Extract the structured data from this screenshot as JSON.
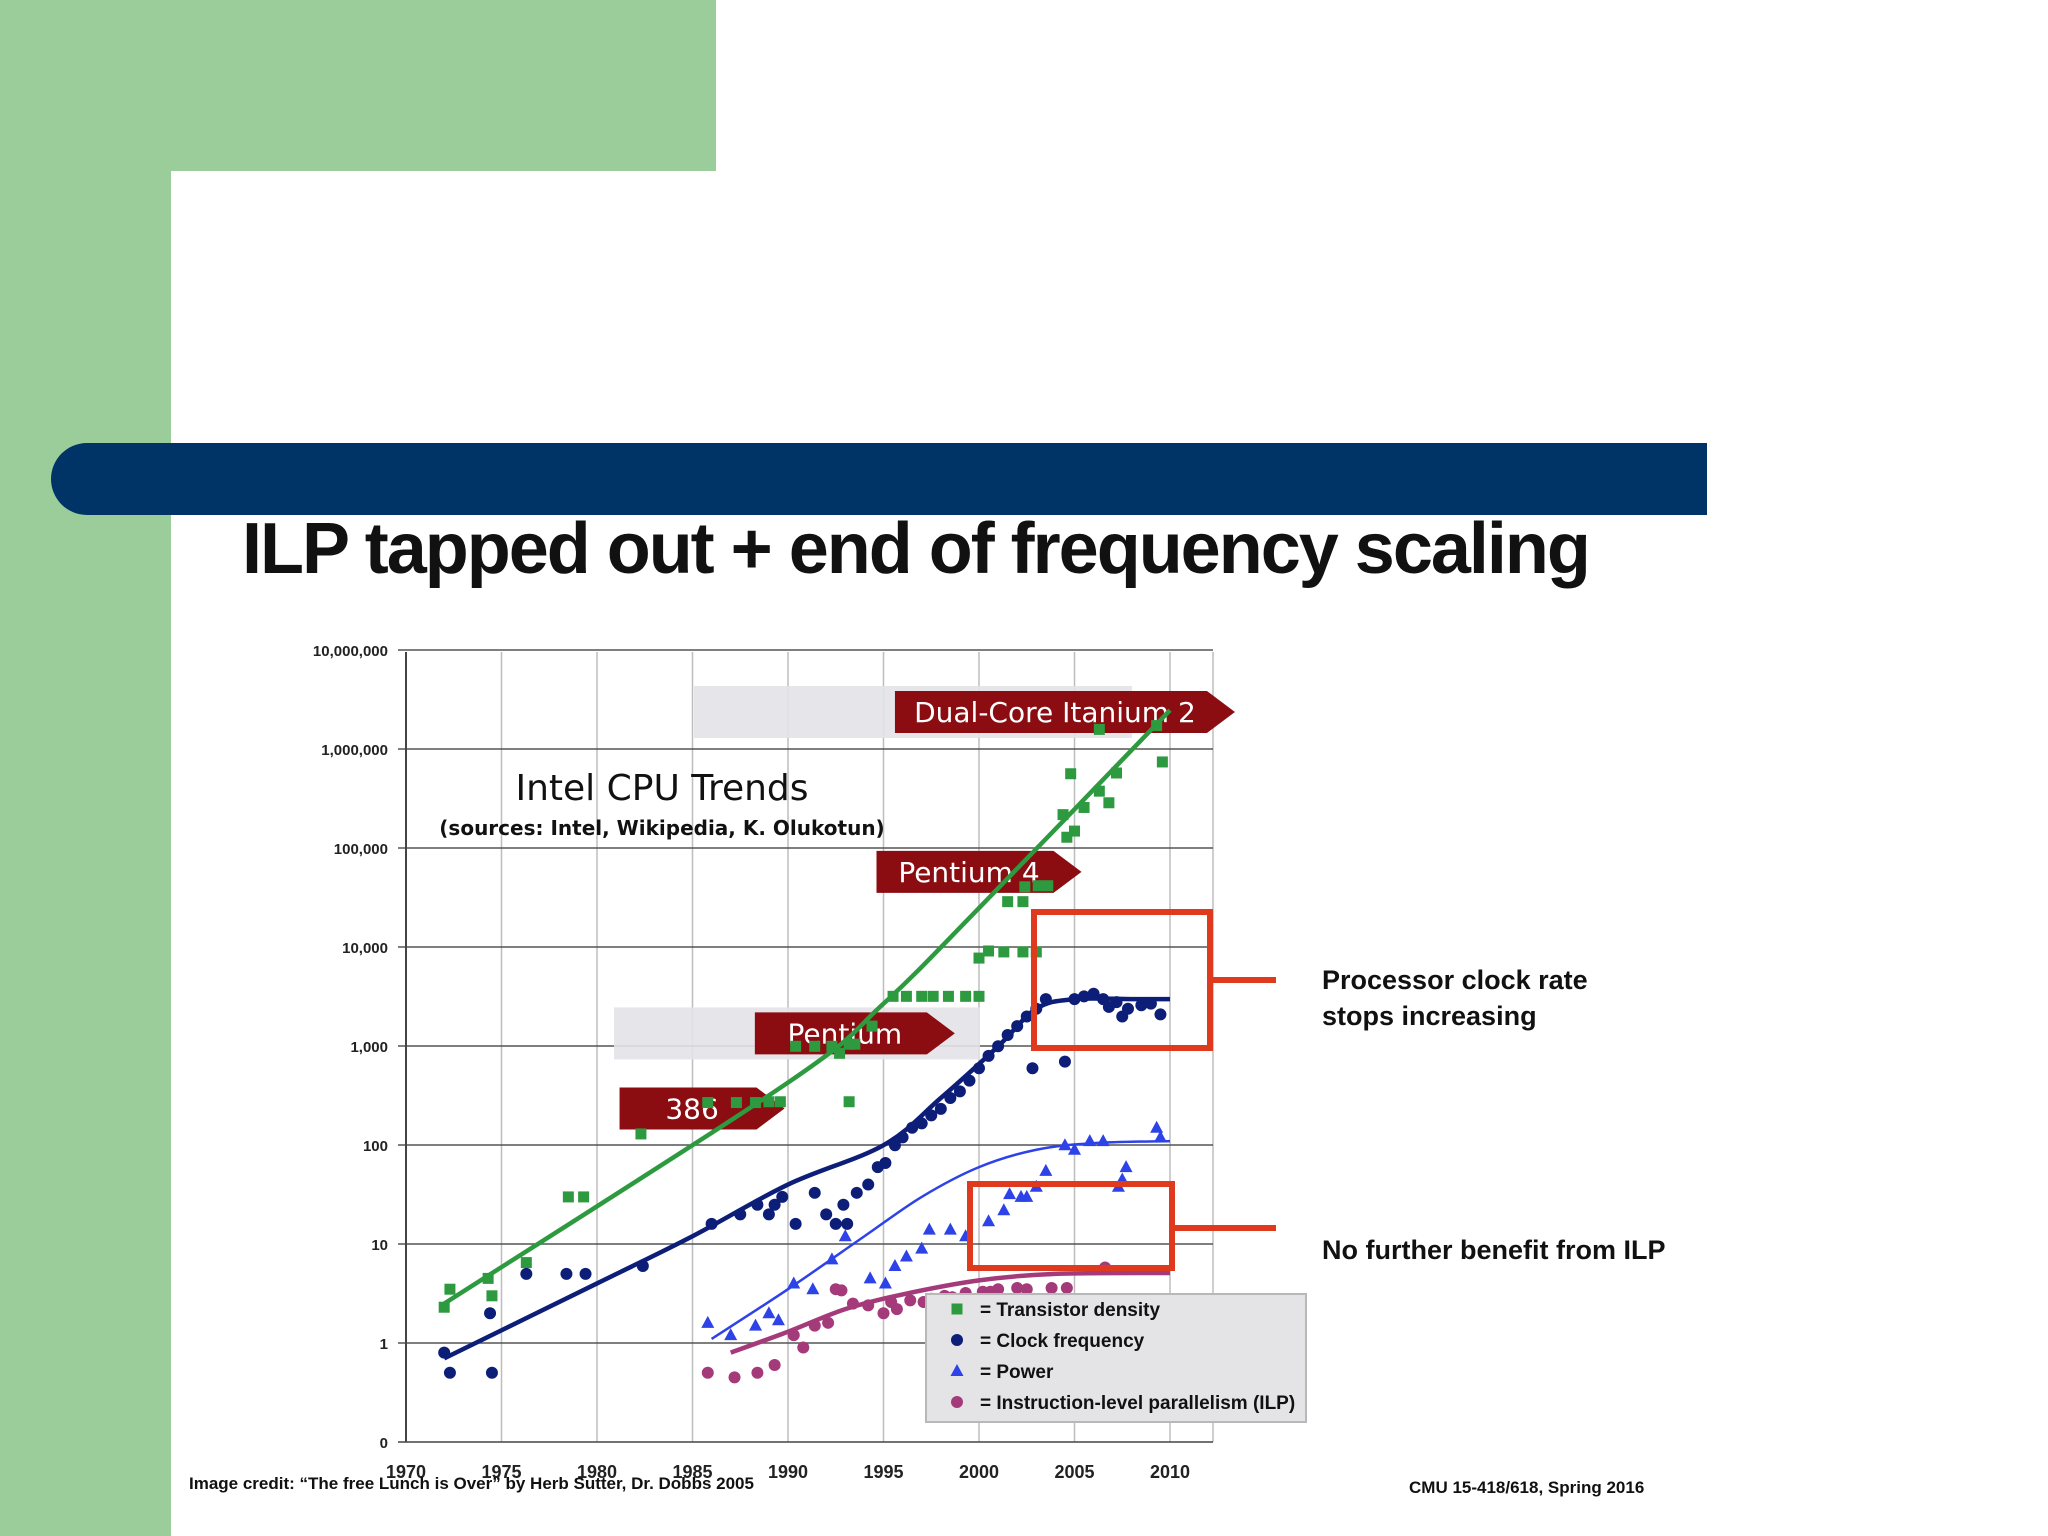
{
  "slide": {
    "title": "ILP tapped out + end of frequency scaling",
    "callout_clock": "Processor clock rate stops increasing",
    "callout_ilp": "No further benefit from ILP",
    "credit": "Image credit: “The free Lunch is Over” by Herb Sutter, Dr. Dobbs 2005",
    "course": "CMU 15-418/618, Spring 2016",
    "colors": {
      "background_green": "#9acd9a",
      "title_bar": "#003366",
      "callout_box": "#e03a1e",
      "arrow_label": "#8b0d12"
    }
  },
  "chart_data": {
    "type": "scatter",
    "title": "Intel CPU Trends",
    "subtitle": "(sources: Intel, Wikipedia, K. Olukotun)",
    "xlabel": "",
    "ylabel": "",
    "x_ticks": [
      "1970",
      "1975",
      "1980",
      "1985",
      "1990",
      "1995",
      "2000",
      "2005",
      "2010"
    ],
    "y_ticks": [
      "0",
      "1",
      "10",
      "100",
      "1,000",
      "10,000",
      "100,000",
      "1,000,000",
      "10,000,000"
    ],
    "xlim": [
      1970,
      2012
    ],
    "y_scale": "log",
    "grid": true,
    "legend_position": "bottom-right",
    "annotations": [
      {
        "label": "386",
        "year": 1985.5,
        "y": 235
      },
      {
        "label": "Pentium",
        "year": 1993.5,
        "y": 1350
      },
      {
        "label": "Pentium 4",
        "year": 2000,
        "y": 58000
      },
      {
        "label": "Dual-Core Itanium 2",
        "year": 2004.5,
        "y": 2400000
      }
    ],
    "series": [
      {
        "name": "Transistor density",
        "marker": "square",
        "color": "#2e9a3f",
        "points": [
          [
            1972,
            2.3
          ],
          [
            1972.3,
            3.5
          ],
          [
            1974.3,
            4.5
          ],
          [
            1974.5,
            3
          ],
          [
            1976.3,
            6.5
          ],
          [
            1978.5,
            30
          ],
          [
            1979.3,
            30
          ],
          [
            1982.3,
            130
          ],
          [
            1985.8,
            270
          ],
          [
            1987.3,
            270
          ],
          [
            1988.3,
            270
          ],
          [
            1989,
            275
          ],
          [
            1989.6,
            275
          ],
          [
            1990.4,
            1000
          ],
          [
            1991.4,
            1000
          ],
          [
            1992.3,
            1000
          ],
          [
            1992.7,
            850
          ],
          [
            1993.2,
            1050
          ],
          [
            1993.5,
            1050
          ],
          [
            1993.2,
            275
          ],
          [
            1994.4,
            1600
          ],
          [
            1995.5,
            3200
          ],
          [
            1996.2,
            3200
          ],
          [
            1997,
            3200
          ],
          [
            1997.6,
            3200
          ],
          [
            1998.4,
            3200
          ],
          [
            1999.3,
            3200
          ],
          [
            2000,
            3200
          ],
          [
            2000,
            7800
          ],
          [
            2000.5,
            9200
          ],
          [
            2001.3,
            9000
          ],
          [
            2002.3,
            9000
          ],
          [
            2003,
            9000
          ],
          [
            2001.5,
            29000
          ],
          [
            2002.3,
            29000
          ],
          [
            2002.4,
            41000
          ],
          [
            2003.1,
            42000
          ],
          [
            2003.6,
            42000
          ],
          [
            2004.4,
            220000
          ],
          [
            2004.6,
            130000
          ],
          [
            2004.8,
            570000
          ],
          [
            2005,
            150000
          ],
          [
            2005.5,
            260000
          ],
          [
            2006.3,
            380000
          ],
          [
            2006.8,
            290000
          ],
          [
            2007.2,
            580000
          ],
          [
            2006.3,
            1600000
          ],
          [
            2009.3,
            1750000
          ],
          [
            2009.6,
            750000
          ]
        ]
      },
      {
        "name": "Clock frequency",
        "marker": "circle",
        "color": "#0d1e78",
        "points": [
          [
            1972,
            0.8
          ],
          [
            1972.3,
            0.5
          ],
          [
            1974.4,
            2
          ],
          [
            1974.5,
            0.5
          ],
          [
            1976.3,
            5
          ],
          [
            1978.4,
            5
          ],
          [
            1979.4,
            5
          ],
          [
            1982.4,
            6
          ],
          [
            1986,
            16
          ],
          [
            1987.5,
            20
          ],
          [
            1988.4,
            25
          ],
          [
            1989,
            20
          ],
          [
            1989.3,
            25
          ],
          [
            1989.7,
            30
          ],
          [
            1990.4,
            16
          ],
          [
            1991.4,
            33
          ],
          [
            1992,
            20
          ],
          [
            1992.5,
            16
          ],
          [
            1992.9,
            25
          ],
          [
            1993.1,
            16
          ],
          [
            1993.6,
            33
          ],
          [
            1994.2,
            40
          ],
          [
            1994.7,
            60
          ],
          [
            1995.1,
            66
          ],
          [
            1995.6,
            100
          ],
          [
            1996,
            120
          ],
          [
            1996.5,
            150
          ],
          [
            1997,
            166
          ],
          [
            1997.5,
            200
          ],
          [
            1998,
            233
          ],
          [
            1998.5,
            300
          ],
          [
            1999,
            350
          ],
          [
            1999.5,
            450
          ],
          [
            2000,
            600
          ],
          [
            2000.5,
            800
          ],
          [
            2001,
            1000
          ],
          [
            2001.5,
            1300
          ],
          [
            2002,
            1600
          ],
          [
            2002.5,
            2000
          ],
          [
            2003,
            2400
          ],
          [
            2003.5,
            3000
          ],
          [
            2002.8,
            600
          ],
          [
            2004.5,
            700
          ],
          [
            2005,
            3000
          ],
          [
            2005.5,
            3200
          ],
          [
            2006,
            3400
          ],
          [
            2006.5,
            3000
          ],
          [
            2006.8,
            2500
          ],
          [
            2007.2,
            2800
          ],
          [
            2007.5,
            2000
          ],
          [
            2007.8,
            2400
          ],
          [
            2008.5,
            2600
          ],
          [
            2009,
            2700
          ],
          [
            2009.5,
            2100
          ]
        ]
      },
      {
        "name": "Power",
        "marker": "triangle",
        "color": "#2d43e8",
        "points": [
          [
            1985.8,
            1.6
          ],
          [
            1987,
            1.2
          ],
          [
            1988.3,
            1.5
          ],
          [
            1989,
            2
          ],
          [
            1989.5,
            1.7
          ],
          [
            1990.3,
            4
          ],
          [
            1991.3,
            3.5
          ],
          [
            1992.3,
            7
          ],
          [
            1993,
            12
          ],
          [
            1994.3,
            4.5
          ],
          [
            1995.1,
            4
          ],
          [
            1995.6,
            6
          ],
          [
            1996.2,
            7.5
          ],
          [
            1997,
            9
          ],
          [
            1997.4,
            14
          ],
          [
            1998.5,
            14
          ],
          [
            1999.3,
            12
          ],
          [
            2000.5,
            17
          ],
          [
            2001.3,
            22
          ],
          [
            2001.6,
            32
          ],
          [
            2002.2,
            30
          ],
          [
            2002.5,
            30
          ],
          [
            2003,
            38
          ],
          [
            2003.5,
            55
          ],
          [
            2004.5,
            100
          ],
          [
            2005,
            90
          ],
          [
            2005.8,
            110
          ],
          [
            2006.5,
            110
          ],
          [
            2007.3,
            38
          ],
          [
            2007.5,
            45
          ],
          [
            2007.7,
            60
          ],
          [
            2009.3,
            150
          ],
          [
            2009.5,
            120
          ]
        ]
      },
      {
        "name": "Instruction-level parallelism (ILP)",
        "marker": "circle",
        "color": "#a43a7a",
        "points": [
          [
            1985.8,
            0.5
          ],
          [
            1987.2,
            0.45
          ],
          [
            1988.4,
            0.5
          ],
          [
            1989.3,
            0.6
          ],
          [
            1990.3,
            1.2
          ],
          [
            1990.8,
            0.9
          ],
          [
            1991.4,
            1.5
          ],
          [
            1992.1,
            1.6
          ],
          [
            1992.5,
            3.5
          ],
          [
            1992.8,
            3.4
          ],
          [
            1993.4,
            2.5
          ],
          [
            1994.2,
            2.4
          ],
          [
            1995,
            2
          ],
          [
            1995.4,
            2.6
          ],
          [
            1995.7,
            2.2
          ],
          [
            1996.4,
            2.7
          ],
          [
            1997.1,
            2.6
          ],
          [
            1997.5,
            2.8
          ],
          [
            1998.2,
            3
          ],
          [
            1998.6,
            2.9
          ],
          [
            1999.3,
            3.2
          ],
          [
            2000.2,
            3.3
          ],
          [
            2000.6,
            3.3
          ],
          [
            2001,
            3.5
          ],
          [
            2002,
            3.6
          ],
          [
            2002.5,
            3.5
          ],
          [
            2003.8,
            3.6
          ],
          [
            2004.6,
            3.6
          ],
          [
            2006.6,
            5.8
          ]
        ]
      }
    ],
    "trend_lines": [
      {
        "series": "Transistor density",
        "points": [
          [
            1972,
            2.5
          ],
          [
            1990,
            430
          ],
          [
            1995,
            2700
          ],
          [
            2000,
            25000
          ],
          [
            2010,
            2500000
          ]
        ]
      },
      {
        "series": "Clock frequency",
        "points": [
          [
            1972,
            0.7
          ],
          [
            1980,
            4
          ],
          [
            1985,
            12
          ],
          [
            1990,
            40
          ],
          [
            1995,
            100
          ],
          [
            1998,
            300
          ],
          [
            2001,
            1000
          ],
          [
            2003,
            2400
          ],
          [
            2005,
            3000
          ],
          [
            2008,
            3000
          ],
          [
            2010,
            3000
          ]
        ]
      },
      {
        "series": "Power",
        "points": [
          [
            1986,
            1.1
          ],
          [
            1990,
            3.5
          ],
          [
            1994,
            12
          ],
          [
            1997,
            30
          ],
          [
            2000,
            60
          ],
          [
            2003,
            90
          ],
          [
            2006,
            105
          ],
          [
            2010,
            110
          ]
        ]
      },
      {
        "series": "Instruction-level parallelism (ILP)",
        "points": [
          [
            1987,
            0.8
          ],
          [
            1990,
            1.3
          ],
          [
            1993,
            2.2
          ],
          [
            1996,
            3.1
          ],
          [
            2000,
            4.3
          ],
          [
            2004,
            5.0
          ],
          [
            2010,
            5.1
          ]
        ]
      }
    ]
  }
}
